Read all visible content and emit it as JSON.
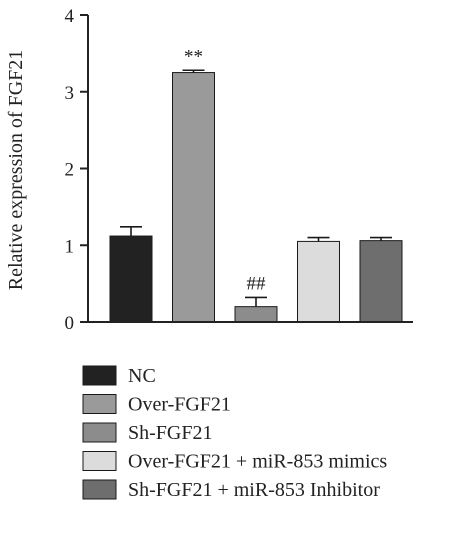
{
  "chart_data": {
    "type": "bar",
    "title": "",
    "xlabel": "",
    "ylabel": "Relative expression of FGF21",
    "ylim": [
      0,
      4
    ],
    "yticks": [
      0,
      1,
      2,
      3,
      4
    ],
    "grid": false,
    "legend_position": "bottom",
    "categories": [
      "NC",
      "Over-FGF21",
      "Sh-FGF21",
      "Over-FGF21 + miR-853 mimics",
      "Sh-FGF21 + miR-853 Inhibitor"
    ],
    "values": [
      1.12,
      3.25,
      0.2,
      1.05,
      1.06
    ],
    "errors": [
      0.12,
      0.03,
      0.12,
      0.05,
      0.04
    ],
    "colors": [
      "#222222",
      "#9a9a9a",
      "#8c8c8c",
      "#dcdcdc",
      "#6e6e6e"
    ],
    "annotations": [
      "",
      "**",
      "##",
      "",
      ""
    ]
  }
}
